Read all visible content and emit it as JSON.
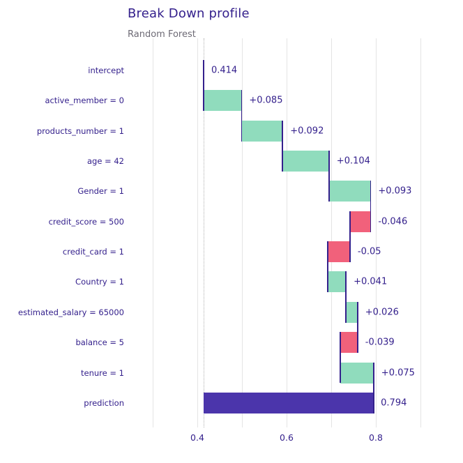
{
  "chart_data": {
    "type": "bar",
    "variant": "waterfall-breakdown",
    "title": "Break Down profile",
    "subtitle": "Random Forest",
    "baseline": 0.414,
    "prediction": 0.794,
    "rows": [
      {
        "label": "intercept",
        "kind": "intercept",
        "value": 0.414,
        "start": 0.414,
        "end": 0.414,
        "value_label": "0.414"
      },
      {
        "label": "active_member = 0",
        "kind": "positive",
        "value": 0.085,
        "start": 0.414,
        "end": 0.499,
        "value_label": "+0.085"
      },
      {
        "label": "products_number = 1",
        "kind": "positive",
        "value": 0.092,
        "start": 0.499,
        "end": 0.591,
        "value_label": "+0.092"
      },
      {
        "label": "age = 42",
        "kind": "positive",
        "value": 0.104,
        "start": 0.591,
        "end": 0.695,
        "value_label": "+0.104"
      },
      {
        "label": "Gender = 1",
        "kind": "positive",
        "value": 0.093,
        "start": 0.695,
        "end": 0.788,
        "value_label": "+0.093"
      },
      {
        "label": "credit_score = 500",
        "kind": "negative",
        "value": -0.046,
        "start": 0.788,
        "end": 0.742,
        "value_label": "-0.046"
      },
      {
        "label": "credit_card = 1",
        "kind": "negative",
        "value": -0.05,
        "start": 0.742,
        "end": 0.692,
        "value_label": "-0.05"
      },
      {
        "label": "Country = 1",
        "kind": "positive",
        "value": 0.041,
        "start": 0.692,
        "end": 0.733,
        "value_label": "+0.041"
      },
      {
        "label": "estimated_salary = 65000",
        "kind": "positive",
        "value": 0.026,
        "start": 0.733,
        "end": 0.759,
        "value_label": "+0.026"
      },
      {
        "label": "balance = 5",
        "kind": "negative",
        "value": -0.039,
        "start": 0.759,
        "end": 0.72,
        "value_label": "-0.039"
      },
      {
        "label": "tenure = 1",
        "kind": "positive",
        "value": 0.075,
        "start": 0.72,
        "end": 0.795,
        "value_label": "+0.075"
      },
      {
        "label": "prediction",
        "kind": "prediction",
        "value": 0.794,
        "start": 0.414,
        "end": 0.794,
        "value_label": "0.794"
      }
    ],
    "x_axis": {
      "ticks": [
        {
          "value": 0.4,
          "label": "0.4"
        },
        {
          "value": 0.6,
          "label": "0.6"
        },
        {
          "value": 0.8,
          "label": "0.8"
        }
      ],
      "gridlines": [
        0.3,
        0.4,
        0.5,
        0.6,
        0.7,
        0.8,
        0.9
      ],
      "range": [
        0.3,
        0.95
      ],
      "grid_on": true
    },
    "colors": {
      "positive": "#90dcbd",
      "negative": "#f1617b",
      "prediction": "#4b35ab",
      "text": "#34208c",
      "subtitle": "#6d6a75",
      "grid": "#e4e4e4",
      "baseline_dotted": "#b0b0b0"
    }
  }
}
